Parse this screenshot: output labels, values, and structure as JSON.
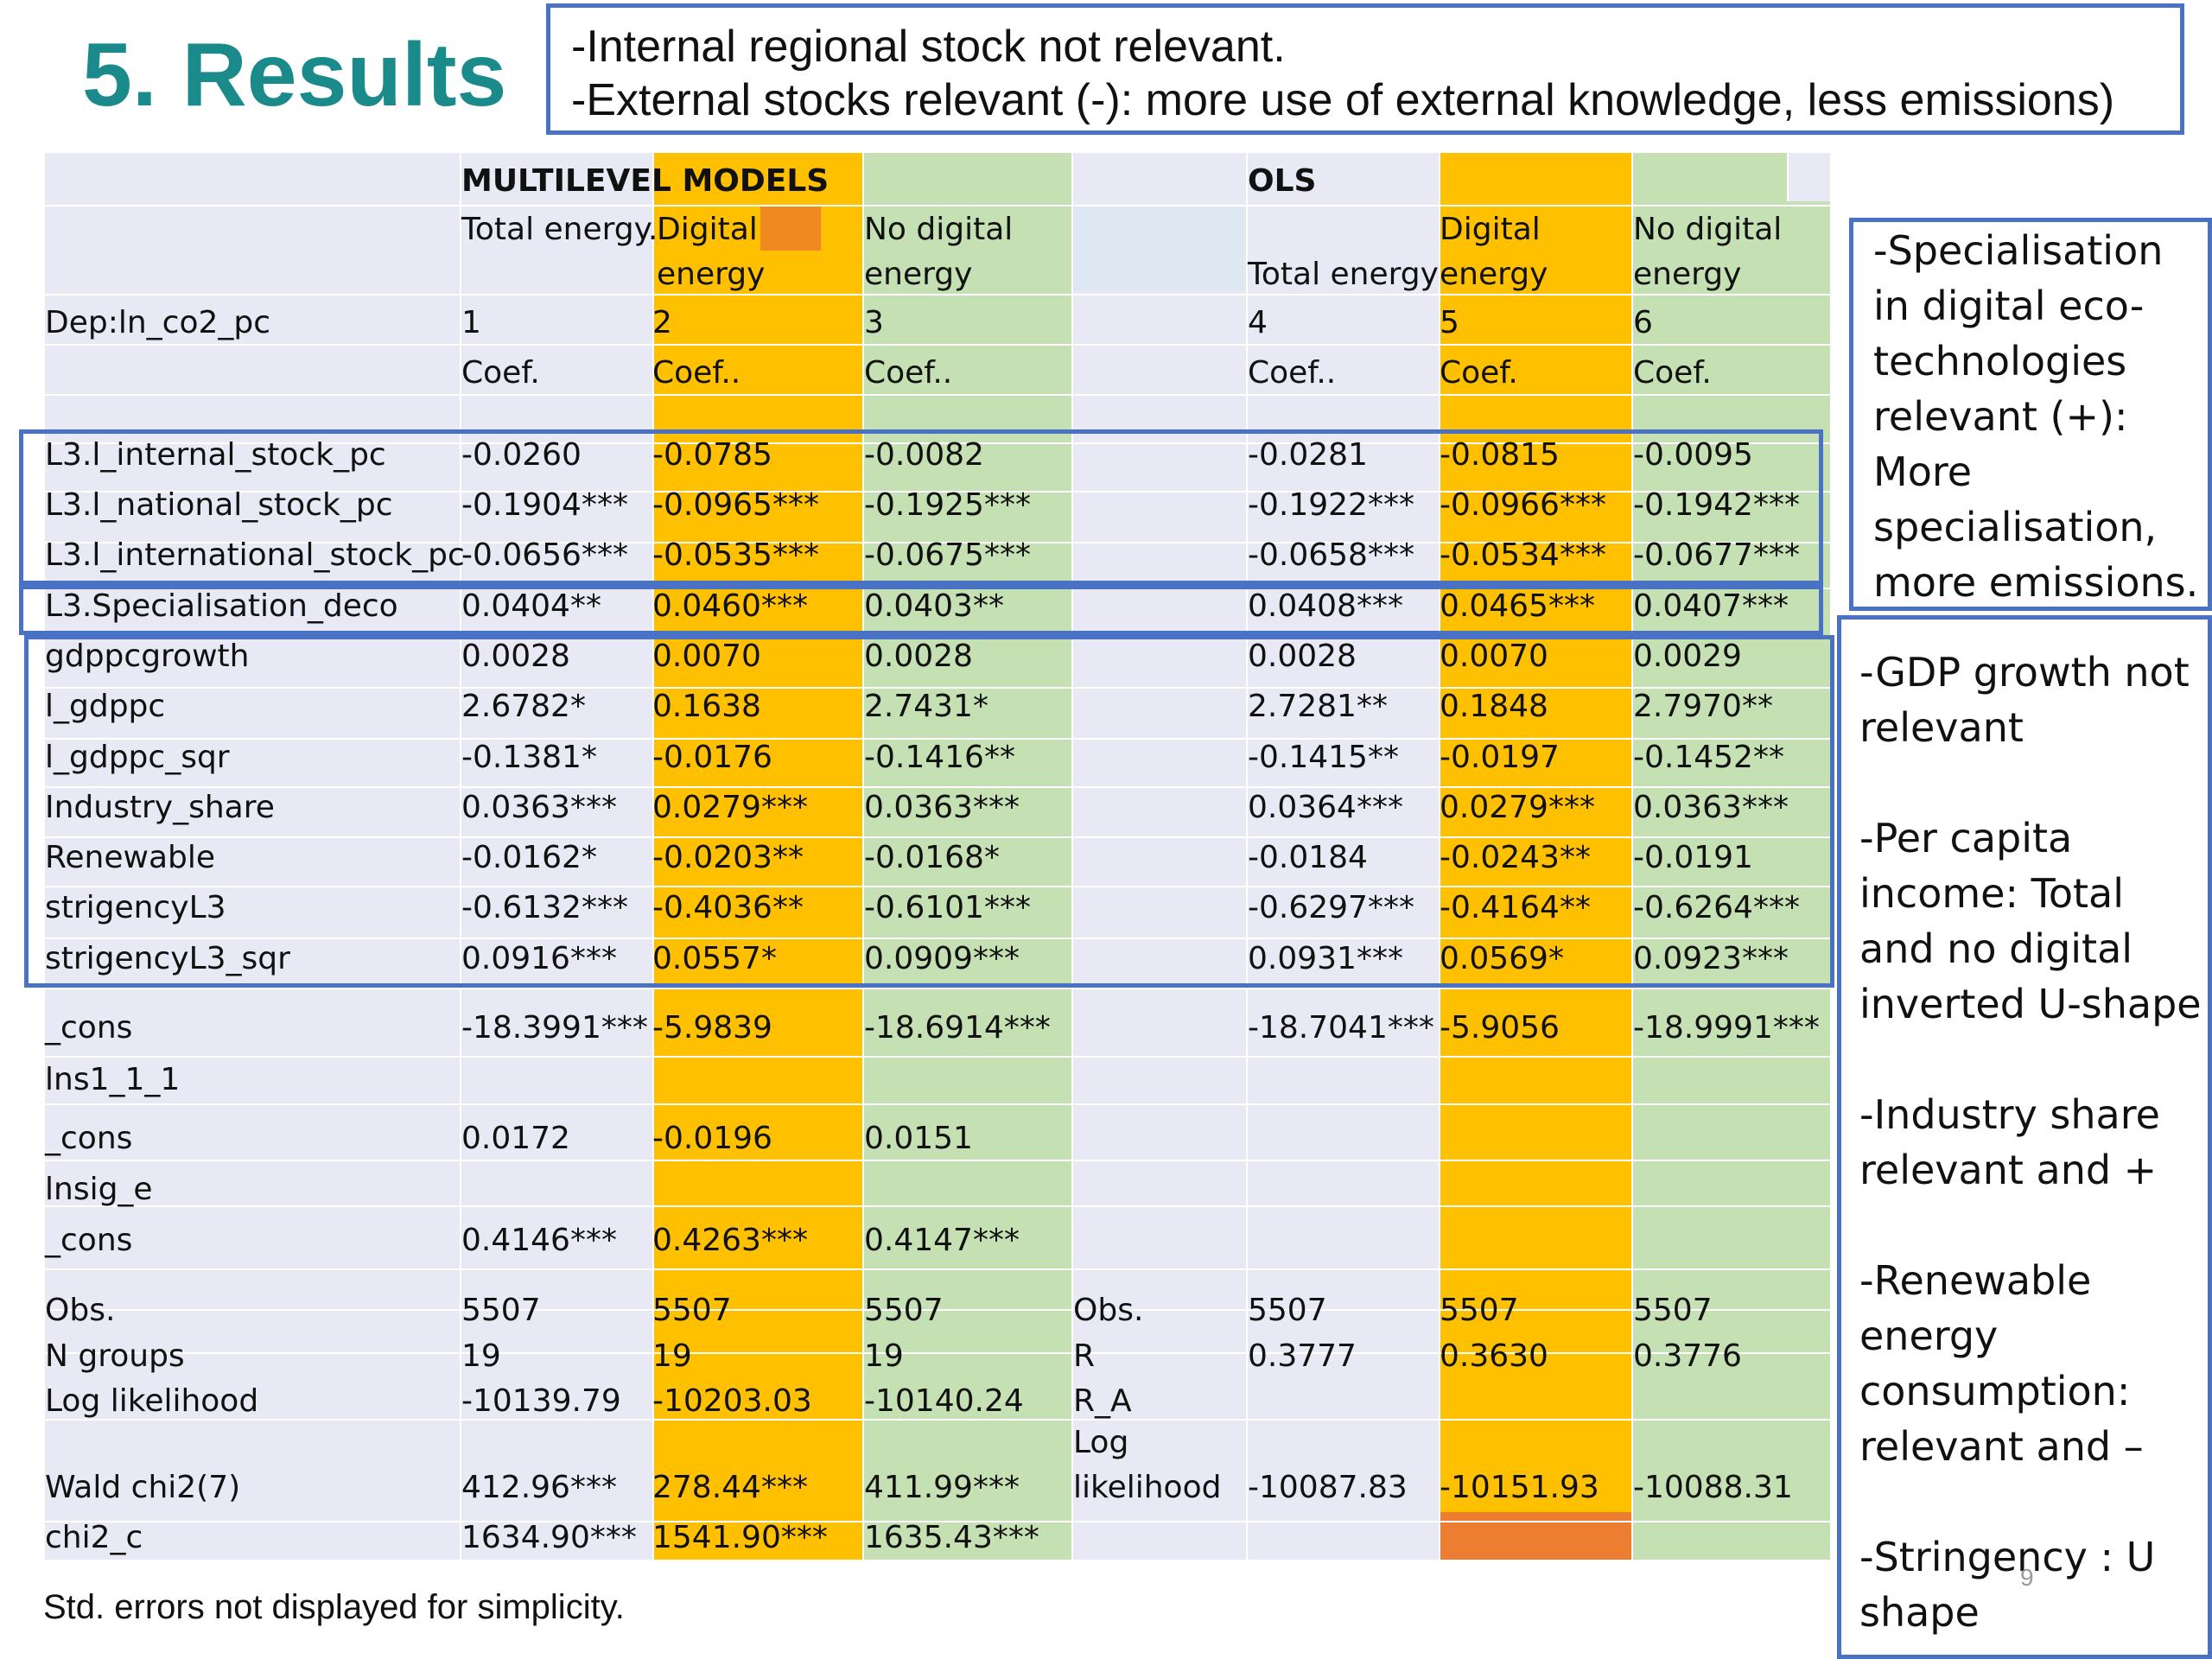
{
  "title": "5. Results",
  "note_top": [
    "-Internal regional stock not relevant.",
    "-External stocks relevant (-): more use of external knowledge, less emissions)"
  ],
  "header": {
    "group_ml": "MULTILEVEL MODELS",
    "group_ols": "OLS",
    "cols": [
      "Total energy.",
      "Digital energy",
      "No digital energy",
      "",
      "Total energy",
      "Digital energy",
      "No digital energy"
    ],
    "dep_label": "Dep:ln_co2_pc",
    "nums": [
      "1",
      "2",
      "3",
      "",
      "4",
      "5",
      "6"
    ],
    "coef": [
      "Coef.",
      "Coef..",
      "Coef..",
      "",
      "Coef..",
      "Coef.",
      "Coef."
    ]
  },
  "rows": [
    {
      "label": "L3.l_internal_stock_pc",
      "v": [
        "-0.0260",
        "-0.0785",
        "-0.0082",
        "",
        "-0.0281",
        "-0.0815",
        "-0.0095"
      ]
    },
    {
      "label": "L3.l_national_stock_pc",
      "v": [
        "-0.1904***",
        "-0.0965***",
        "-0.1925***",
        "",
        "-0.1922***",
        "-0.0966***",
        "-0.1942***"
      ]
    },
    {
      "label": "L3.l_international_stock_pc",
      "v": [
        "-0.0656***",
        "-0.0535***",
        "-0.0675***",
        "",
        "-0.0658***",
        "-0.0534***",
        "-0.0677***"
      ]
    },
    {
      "label": "L3.Specialisation_deco",
      "v": [
        "0.0404**",
        "0.0460***",
        "0.0403**",
        "",
        "0.0408***",
        "0.0465***",
        "0.0407***"
      ]
    },
    {
      "label": "gdppcgrowth",
      "v": [
        "0.0028",
        "0.0070",
        "0.0028",
        "",
        "0.0028",
        "0.0070",
        "0.0029"
      ]
    },
    {
      "label": "l_gdppc",
      "v": [
        "2.6782*",
        "0.1638",
        "2.7431*",
        "",
        "2.7281**",
        "0.1848",
        "2.7970**"
      ]
    },
    {
      "label": "l_gdppc_sqr",
      "v": [
        "-0.1381*",
        "-0.0176",
        "-0.1416**",
        "",
        "-0.1415**",
        "-0.0197",
        "-0.1452**"
      ]
    },
    {
      "label": "Industry_share",
      "v": [
        "0.0363***",
        "0.0279***",
        "0.0363***",
        "",
        "0.0364***",
        "0.0279***",
        "0.0363***"
      ]
    },
    {
      "label": "Renewable",
      "v": [
        "-0.0162*",
        "-0.0203**",
        "-0.0168*",
        "",
        "-0.0184",
        "-0.0243**",
        "-0.0191"
      ]
    },
    {
      "label": "strigencyL3",
      "v": [
        "-0.6132***",
        "-0.4036**",
        "-0.6101***",
        "",
        "-0.6297***",
        "-0.4164**",
        "-0.6264***"
      ]
    },
    {
      "label": "strigencyL3_sqr",
      "v": [
        "0.0916***",
        "0.0557*",
        "0.0909***",
        "",
        "0.0931***",
        "0.0569*",
        "0.0923***"
      ]
    },
    {
      "label": "_cons",
      "v": [
        "-18.3991***",
        "-5.9839",
        "-18.6914***",
        "",
        "-18.7041***",
        "-5.9056",
        "-18.9991***"
      ]
    },
    {
      "label": "lns1_1_1",
      "v": [
        "",
        "",
        "",
        "",
        "",
        "",
        ""
      ]
    },
    {
      "label": "_cons",
      "v": [
        "0.0172",
        "-0.0196",
        "0.0151",
        "",
        "",
        "",
        ""
      ]
    },
    {
      "label": "lnsig_e",
      "v": [
        "",
        "",
        "",
        "",
        "",
        "",
        ""
      ]
    },
    {
      "label": "_cons",
      "v": [
        "0.4146***",
        "0.4263***",
        "0.4147***",
        "",
        "",
        "",
        ""
      ]
    },
    {
      "label": "Obs.",
      "v": [
        "5507",
        "5507",
        "5507",
        "Obs.",
        "5507",
        "5507",
        "5507"
      ]
    },
    {
      "label": "N groups",
      "v": [
        "19",
        "19",
        "19",
        "R",
        "0.3777",
        "0.3630",
        "0.3776"
      ]
    },
    {
      "label": "Log likelihood",
      "v": [
        "-10139.79",
        "-10203.03",
        "-10140.24",
        "R_A",
        "",
        "",
        ""
      ]
    },
    {
      "label": "Wald chi2(7)",
      "v": [
        "412.96***",
        "278.44***",
        "411.99***",
        "Log likelihood",
        "-10087.83",
        "-10151.93",
        "-10088.31"
      ]
    },
    {
      "label": "chi2_c",
      "v": [
        "1634.90***",
        "1541.90***",
        "1635.43***",
        "",
        "",
        "",
        ""
      ]
    }
  ],
  "note_right_1": [
    "-Specialisation",
    "in digital eco-",
    "technologies",
    "relevant (+):",
    "More",
    "specialisation,",
    "more emissions."
  ],
  "note_right_2": [
    "-GDP growth not",
    "relevant",
    "",
    "-Per capita",
    "income: Total",
    "and no digital",
    "inverted U-shape",
    "",
    "-Industry share",
    "relevant and +",
    "",
    "-Renewable",
    "energy",
    "consumption:",
    "relevant and –",
    "",
    "-Stringency : U",
    "shape"
  ],
  "footer": "Std. errors not displayed for simplicity.",
  "page_number": "9",
  "colors": {
    "orange": "#ffc000",
    "green": "#c5e0b3",
    "lavender": "#e8e9f5",
    "dark_orange": "#ed7d31",
    "blue_box": "#4a72c4",
    "title": "#1a8a8a"
  }
}
